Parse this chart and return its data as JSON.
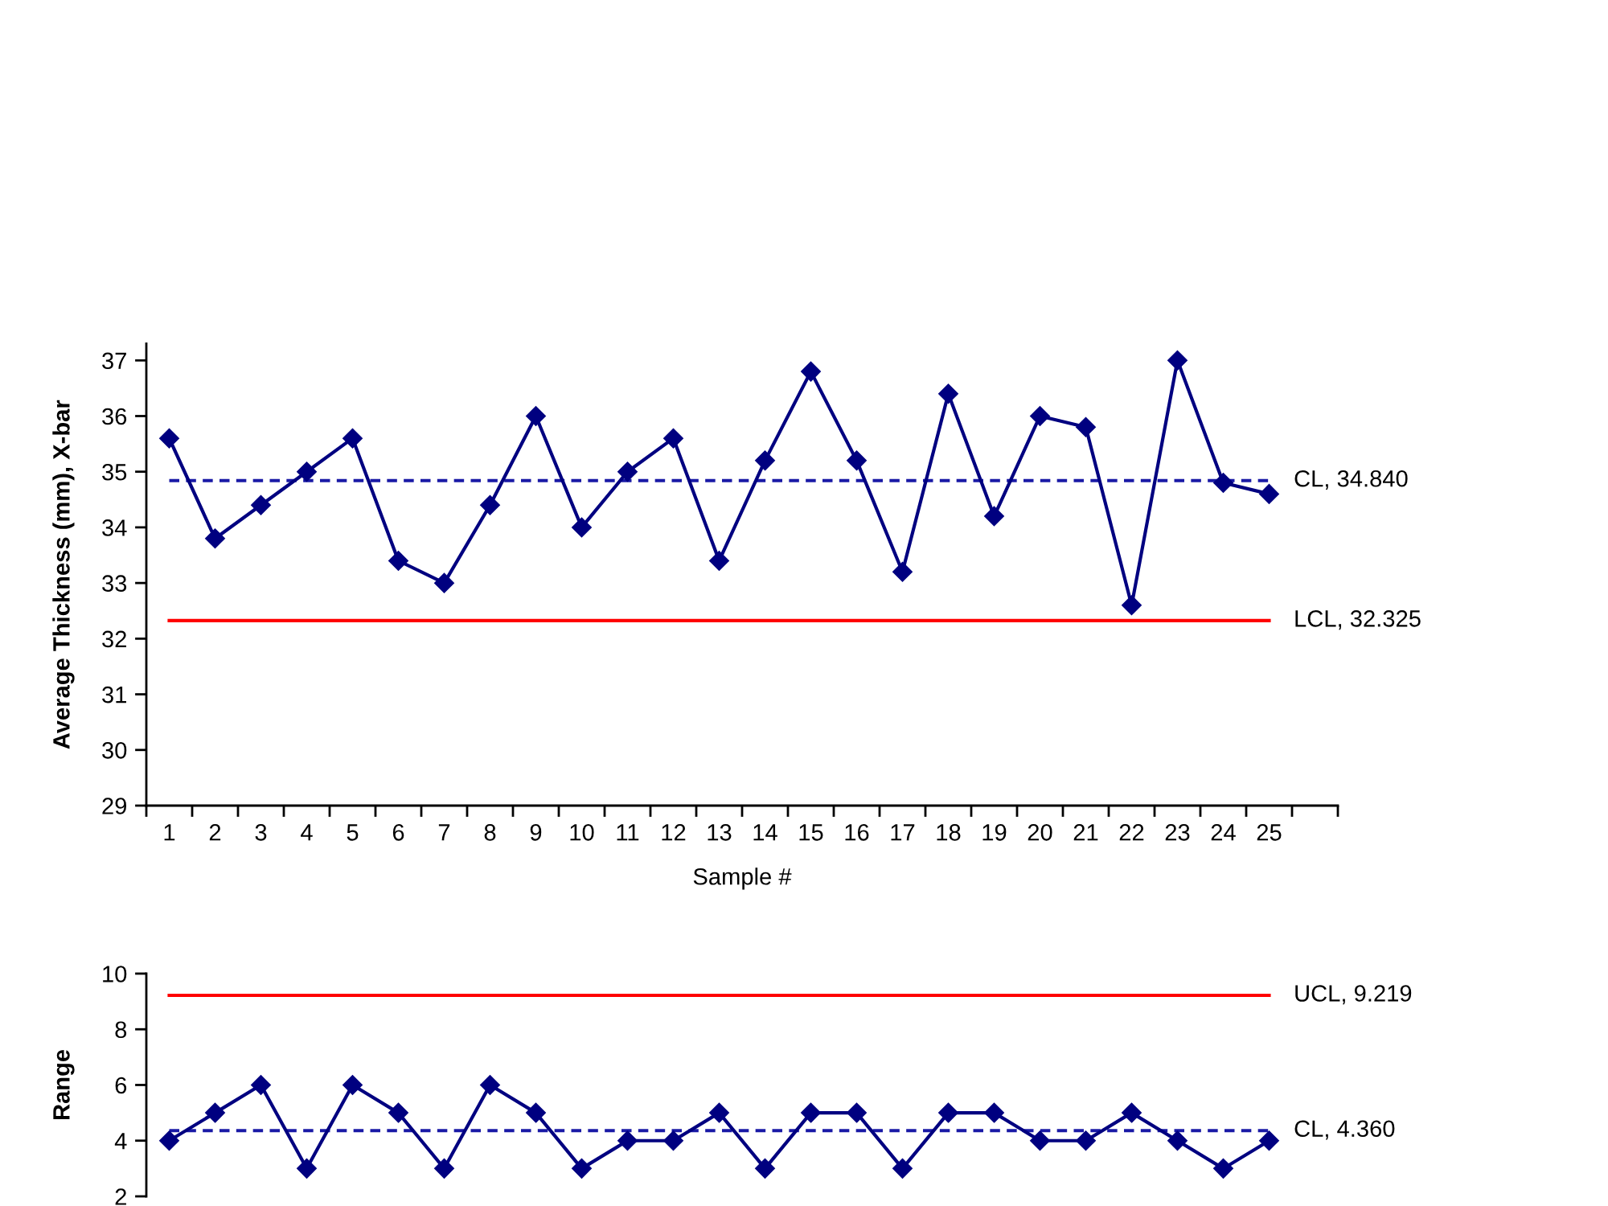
{
  "chart_data": [
    {
      "type": "line",
      "ylabel": "Average Thickness (mm), X-bar",
      "xlabel": "Sample #",
      "categories": [
        "1",
        "2",
        "3",
        "4",
        "5",
        "6",
        "7",
        "8",
        "9",
        "10",
        "11",
        "12",
        "13",
        "14",
        "15",
        "16",
        "17",
        "18",
        "19",
        "20",
        "21",
        "22",
        "23",
        "24",
        "25",
        null
      ],
      "values": [
        35.6,
        33.8,
        34.4,
        35.0,
        35.6,
        33.4,
        33.0,
        34.4,
        36.0,
        34.0,
        35.0,
        35.6,
        33.4,
        35.2,
        36.8,
        35.2,
        33.2,
        36.4,
        34.2,
        36.0,
        35.8,
        32.6,
        37.0,
        34.8,
        34.6,
        null
      ],
      "color": "#000080",
      "marker": "diamond",
      "line_style": "solid",
      "ylim": [
        29,
        37.3
      ],
      "yticks": [
        29,
        30,
        31,
        32,
        33,
        34,
        35,
        36,
        37
      ],
      "ref_lines": [
        {
          "axis": "y",
          "value": 34.84,
          "label": "CL, 34.840",
          "color": "#1a1aa6",
          "line_style": "dashed"
        },
        {
          "axis": "y",
          "value": 32.325,
          "label": "LCL, 32.325",
          "color": "#ff0000",
          "line_style": "solid"
        }
      ]
    },
    {
      "type": "line",
      "ylabel": "Range",
      "categories": [
        null,
        null,
        null,
        null,
        null,
        null,
        null,
        null,
        null,
        null,
        null,
        null,
        null,
        null,
        null,
        null,
        null,
        null,
        null,
        null,
        null,
        null,
        null,
        null,
        null,
        null
      ],
      "values": [
        4,
        5,
        6,
        3,
        6,
        5,
        3,
        6,
        5,
        3,
        4,
        4,
        5,
        3,
        5,
        5,
        3,
        5,
        5,
        4,
        4,
        5,
        4,
        3,
        4,
        null
      ],
      "color": "#000080",
      "marker": "diamond",
      "line_style": "solid",
      "ylim": [
        2,
        10
      ],
      "yticks": [
        2,
        4,
        6,
        8,
        10
      ],
      "tick_labels": "y",
      "ref_lines": [
        {
          "axis": "y",
          "value": 9.219,
          "label": "UCL, 9.219",
          "color": "#ff0000",
          "line_style": "solid"
        },
        {
          "axis": "y",
          "value": 4.36,
          "label": "CL, 4.360",
          "color": "#1a1aa6",
          "line_style": "dashed"
        }
      ]
    }
  ]
}
